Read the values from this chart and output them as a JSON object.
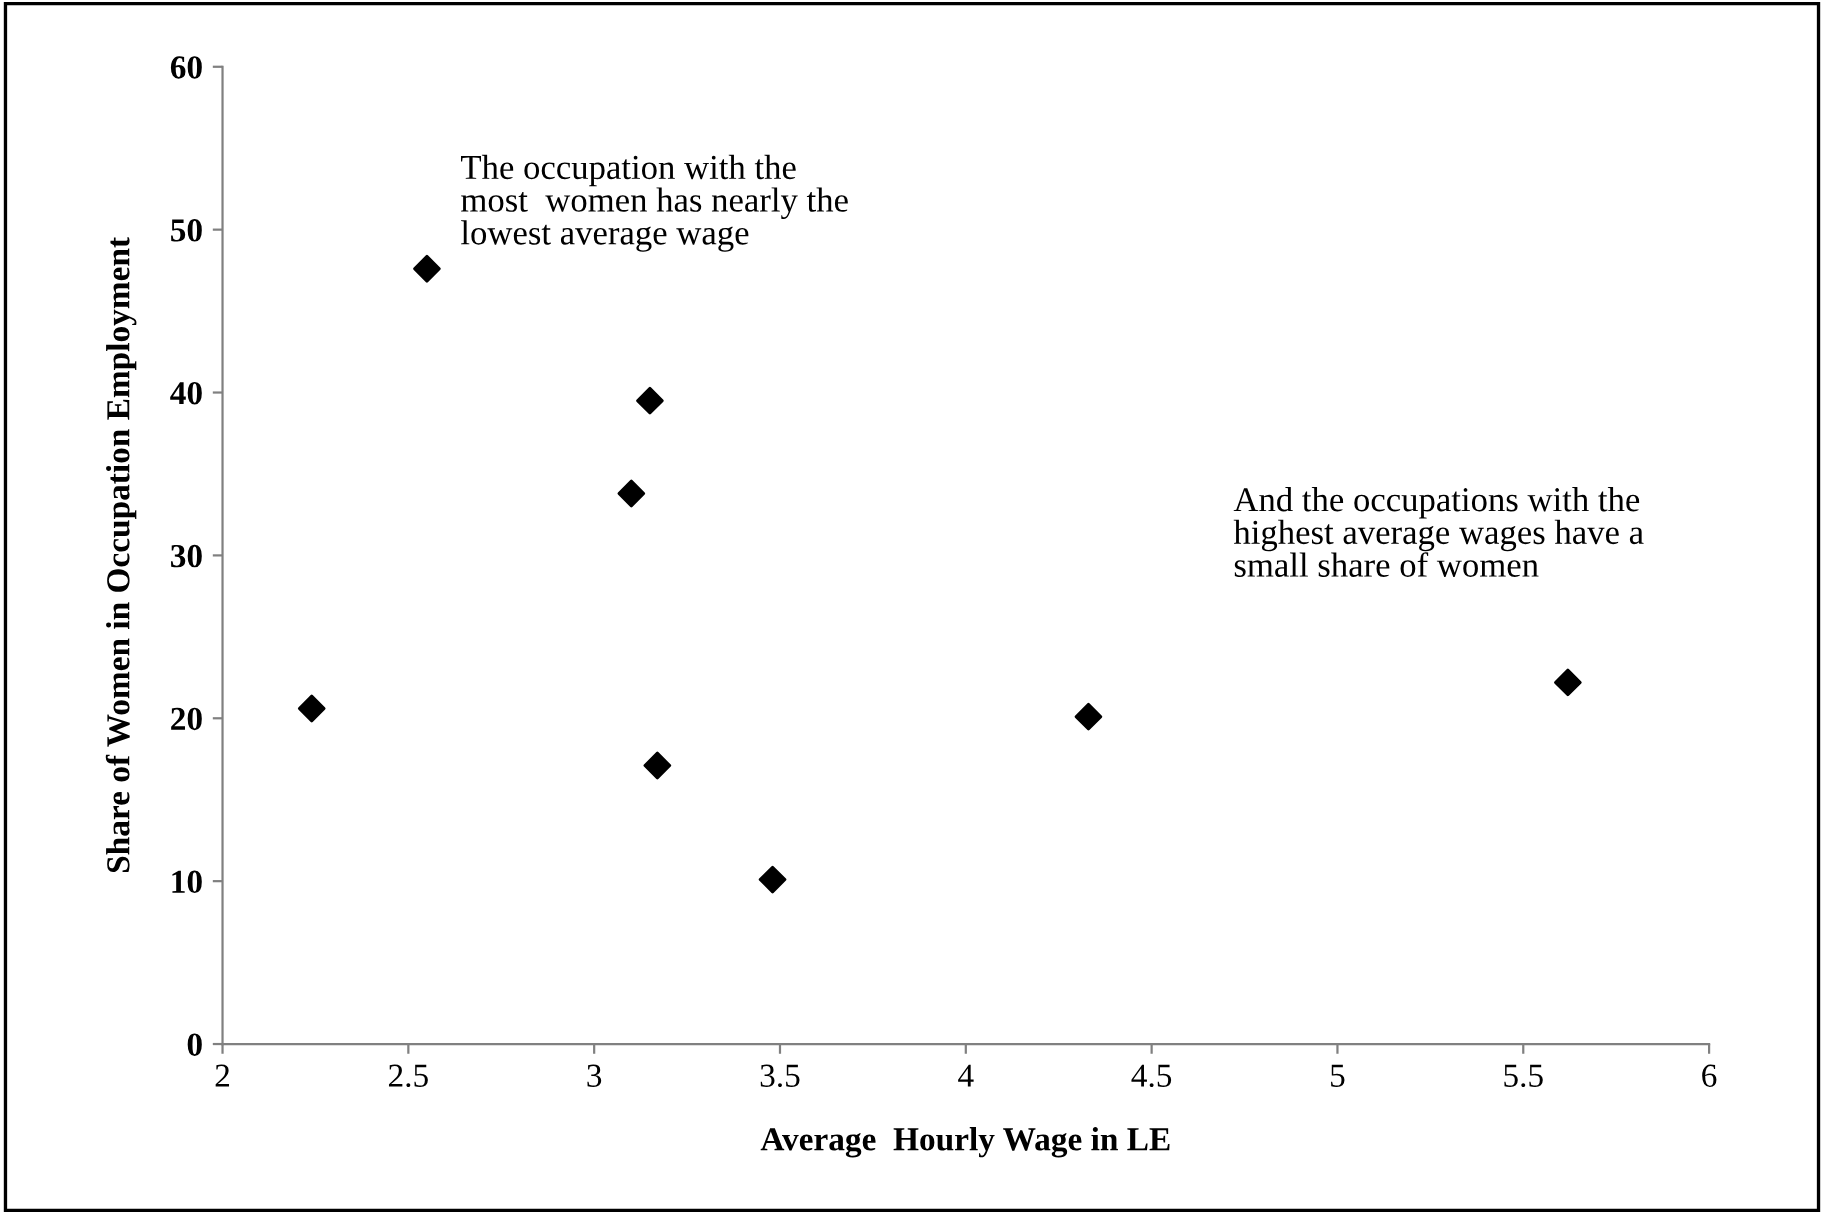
{
  "chart_data": {
    "type": "scatter",
    "xlabel": "Average  Hourly Wage in LE",
    "ylabel": "Share of Women in Occupation Employment",
    "x": [
      2.24,
      2.55,
      3.1,
      3.15,
      3.17,
      3.48,
      4.33,
      5.62
    ],
    "series": [
      {
        "color": "#000000",
        "values": [
          20.6,
          47.6,
          33.8,
          39.5,
          17.1,
          10.1,
          20.1,
          22.2
        ]
      }
    ],
    "marker": "diamond",
    "grid": false,
    "xlim": [
      2,
      6
    ],
    "xticks": [
      2,
      2.5,
      3,
      3.5,
      4,
      4.5,
      5,
      5.5,
      6
    ],
    "ylim": [
      0,
      60
    ],
    "yticks": [
      0,
      10,
      20,
      30,
      40,
      50,
      60
    ],
    "annotations": [
      "The occupation with the\nmost  women has nearly the\nlowest average wage",
      "And the occupations with the\nhighest average wages have a\nsmall share of women"
    ]
  }
}
